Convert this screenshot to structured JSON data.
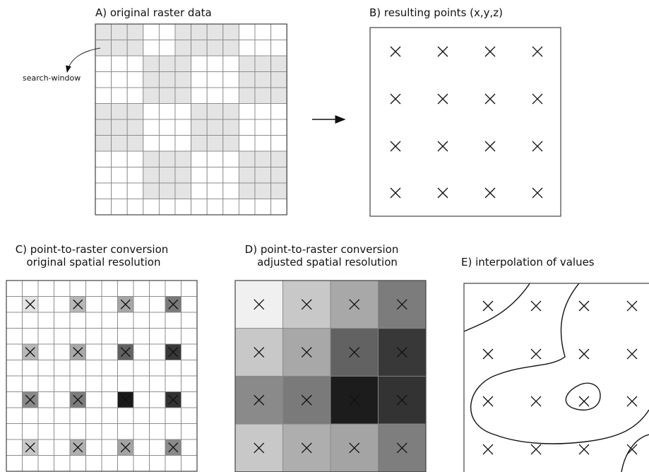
{
  "panels": {
    "a": {
      "title": "A) original raster data",
      "annotation": "search-window",
      "shaded_cells": [
        [
          0,
          0
        ],
        [
          0,
          1
        ],
        [
          0,
          2
        ],
        [
          0,
          5
        ],
        [
          0,
          6
        ],
        [
          0,
          7
        ],
        [
          0,
          8
        ],
        [
          1,
          0
        ],
        [
          1,
          1
        ],
        [
          1,
          2
        ],
        [
          1,
          5
        ],
        [
          1,
          6
        ],
        [
          1,
          7
        ],
        [
          1,
          8
        ],
        [
          2,
          3
        ],
        [
          2,
          4
        ],
        [
          2,
          5
        ],
        [
          2,
          9
        ],
        [
          2,
          10
        ],
        [
          2,
          11
        ],
        [
          3,
          3
        ],
        [
          3,
          4
        ],
        [
          3,
          5
        ],
        [
          3,
          9
        ],
        [
          3,
          10
        ],
        [
          3,
          11
        ],
        [
          4,
          3
        ],
        [
          4,
          4
        ],
        [
          4,
          5
        ],
        [
          4,
          9
        ],
        [
          4,
          10
        ],
        [
          4,
          11
        ],
        [
          5,
          0
        ],
        [
          5,
          1
        ],
        [
          5,
          2
        ],
        [
          5,
          6
        ],
        [
          5,
          7
        ],
        [
          5,
          8
        ],
        [
          6,
          0
        ],
        [
          6,
          1
        ],
        [
          6,
          2
        ],
        [
          6,
          6
        ],
        [
          6,
          7
        ],
        [
          6,
          8
        ],
        [
          7,
          0
        ],
        [
          7,
          1
        ],
        [
          7,
          2
        ],
        [
          7,
          6
        ],
        [
          7,
          7
        ],
        [
          7,
          8
        ],
        [
          8,
          3
        ],
        [
          8,
          4
        ],
        [
          8,
          5
        ],
        [
          8,
          9
        ],
        [
          8,
          10
        ],
        [
          8,
          11
        ],
        [
          9,
          3
        ],
        [
          9,
          4
        ],
        [
          9,
          5
        ],
        [
          9,
          9
        ],
        [
          9,
          10
        ],
        [
          9,
          11
        ],
        [
          10,
          3
        ],
        [
          10,
          4
        ],
        [
          10,
          5
        ],
        [
          10,
          9
        ],
        [
          10,
          10
        ],
        [
          10,
          11
        ]
      ]
    },
    "b": {
      "title": "B) resulting points (x,y,z)"
    },
    "c": {
      "title_line1": "C) point-to-raster conversion",
      "title_line2": "original spatial resolution",
      "cell_colors": [
        [
          "#e4e4e4",
          "#b8b8b8",
          "#a6a6a6",
          "#7a7a7a"
        ],
        [
          "#b8b8b8",
          "#a8a8a8",
          "#626262",
          "#383838"
        ],
        [
          "#8a8a8a",
          "#7c7c7c",
          "#1a1a1a",
          "#323232"
        ],
        [
          "#c8c8c8",
          "#b0b0b0",
          "#a4a4a4",
          "#8a8a8a"
        ]
      ]
    },
    "d": {
      "title_line1": "D) point-to-raster conversion",
      "title_line2": "adjusted spatial resolution",
      "cell_colors": [
        [
          "#f0f0f0",
          "#c8c8c8",
          "#a8a8a8",
          "#7c7c7c"
        ],
        [
          "#c8c8c8",
          "#a8a8a8",
          "#626262",
          "#383838"
        ],
        [
          "#8a8a8a",
          "#7a7a7a",
          "#1c1c1c",
          "#333333"
        ],
        [
          "#c8c8c8",
          "#aeaeae",
          "#a4a4a4",
          "#7e7e7e"
        ]
      ]
    },
    "e": {
      "title": "E) interpolation of values"
    }
  },
  "colors": {
    "shade": "#e4e4e4",
    "grid_line": "#888888",
    "outline": "#444444",
    "ink": "#111111"
  }
}
